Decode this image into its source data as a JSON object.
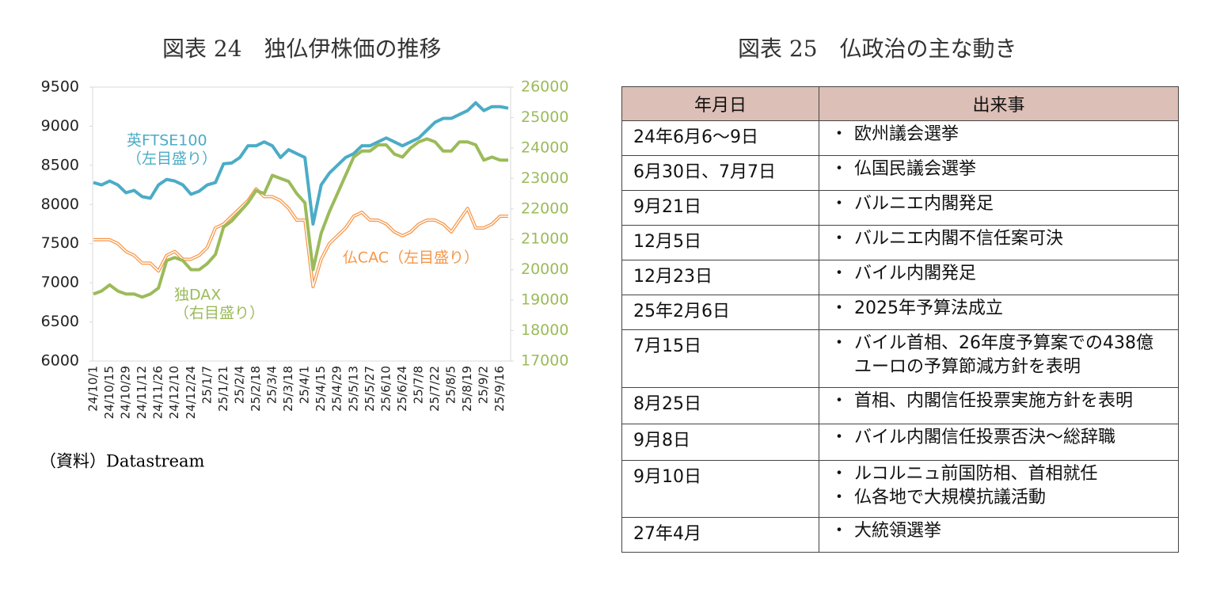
{
  "chart_data": {
    "type": "line",
    "title": "図表 24　独仏伊株価の推移",
    "source": "（資料）Datastream",
    "categories": [
      "24/10/1",
      null,
      "24/10/15",
      null,
      "24/10/29",
      null,
      "24/11/12",
      null,
      "24/11/26",
      null,
      "24/12/10",
      null,
      "24/12/24",
      null,
      "25/1/7",
      null,
      "25/1/21",
      null,
      "25/2/4",
      null,
      "25/2/18",
      null,
      "25/3/4",
      null,
      "25/3/18",
      null,
      "25/4/1",
      null,
      "25/4/15",
      null,
      "25/4/29",
      null,
      "25/5/13",
      null,
      "25/5/27",
      null,
      "25/6/10",
      null,
      "25/6/24",
      null,
      "25/7/8",
      null,
      "25/7/22",
      null,
      "25/8/5",
      null,
      "25/8/19",
      null,
      "25/9/2",
      null,
      "25/9/16",
      null
    ],
    "series": [
      {
        "name": "英FTSE100",
        "color": "#4bacc6",
        "values": [
          8280,
          8250,
          8300,
          8250,
          8150,
          8180,
          8100,
          8080,
          8250,
          8320,
          8300,
          8250,
          8130,
          8170,
          8250,
          8280,
          8520,
          8530,
          8600,
          8750,
          8750,
          8800,
          8750,
          8600,
          8700,
          8650,
          8600,
          7750,
          8250,
          8400,
          8500,
          8600,
          8650,
          8750,
          8750,
          8800,
          8850,
          8800,
          8750,
          8800,
          8850,
          8950,
          9050,
          9100,
          9100,
          9150,
          9200,
          9300,
          9200,
          9250,
          9250,
          9230
        ]
      },
      {
        "name": "仏CAC",
        "color": "#f79646",
        "values": [
          7550,
          7550,
          7550,
          7500,
          7400,
          7350,
          7250,
          7250,
          7150,
          7350,
          7400,
          7300,
          7300,
          7350,
          7450,
          7700,
          7750,
          7850,
          7950,
          8050,
          8200,
          8100,
          8100,
          8050,
          7950,
          7800,
          7800,
          6950,
          7300,
          7500,
          7600,
          7700,
          7850,
          7900,
          7800,
          7800,
          7750,
          7650,
          7600,
          7650,
          7750,
          7800,
          7800,
          7750,
          7650,
          7800,
          7950,
          7700,
          7700,
          7750,
          7850,
          7850
        ]
      },
      {
        "name": "独DAX",
        "color": "#9bbb59",
        "axis": "y2",
        "values": [
          19200,
          19300,
          19500,
          19300,
          19200,
          19200,
          19100,
          19200,
          19400,
          20300,
          20400,
          20300,
          20000,
          20000,
          20200,
          20500,
          21400,
          21600,
          21900,
          22200,
          22600,
          22500,
          23100,
          23000,
          22900,
          22500,
          22200,
          20000,
          21200,
          21900,
          22500,
          23100,
          23700,
          23900,
          23900,
          24100,
          24100,
          23800,
          23700,
          24000,
          24200,
          24300,
          24200,
          23900,
          23900,
          24200,
          24200,
          24100,
          23600,
          23700,
          23600,
          23600
        ]
      }
    ],
    "annotations": [
      "英FTSE100",
      "（左目盛り）",
      "仏CAC（左目盛り）",
      "独DAX",
      "（右目盛り）"
    ],
    "ylim": [
      6000,
      9500
    ],
    "yticks": [
      6000,
      6500,
      7000,
      7500,
      8000,
      8500,
      9000,
      9500
    ],
    "y2lim": [
      17000,
      26000
    ],
    "y2ticks": [
      17000,
      18000,
      19000,
      20000,
      21000,
      22000,
      23000,
      24000,
      25000,
      26000
    ],
    "grid": false
  },
  "table": {
    "title": "図表 25　仏政治の主な動き",
    "header": [
      "年月日",
      "出来事"
    ],
    "rows": [
      {
        "date": "24年6月6～9日",
        "events": [
          "欧州議会選挙"
        ]
      },
      {
        "date": "6月30日、7月7日",
        "events": [
          "仏国民議会選挙"
        ]
      },
      {
        "date": "9月21日",
        "events": [
          "バルニエ内閣発足"
        ]
      },
      {
        "date": "12月5日",
        "events": [
          "バルニエ内閣不信任案可決"
        ]
      },
      {
        "date": "12月23日",
        "events": [
          "バイル内閣発足"
        ]
      },
      {
        "date": "25年2月6日",
        "events": [
          "2025年予算法成立"
        ]
      },
      {
        "date": "7月15日",
        "events": [
          "バイル首相、26年度予算案での438億ユーロの予算節減方針を表明"
        ]
      },
      {
        "date": "8月25日",
        "events": [
          "首相、内閣信任投票実施方針を表明"
        ]
      },
      {
        "date": "9月8日",
        "events": [
          "バイル内閣信任投票否決～総辞職"
        ]
      },
      {
        "date": "9月10日",
        "events": [
          "ルコルニュ前国防相、首相就任",
          "仏各地で大規模抗議活動"
        ]
      },
      {
        "date": "27年4月",
        "events": [
          "大統領選挙"
        ]
      }
    ]
  }
}
